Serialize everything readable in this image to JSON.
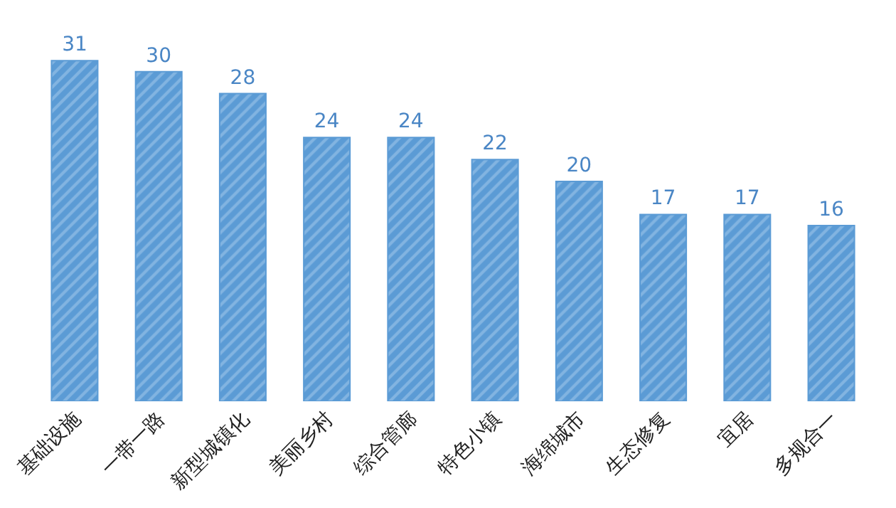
{
  "chart_data": {
    "type": "bar",
    "categories": [
      "基础设施",
      "一带一路",
      "新型城镇化",
      "美丽乡村",
      "综合管廊",
      "特色小镇",
      "海绵城市",
      "生态修复",
      "宜居",
      "多规合一"
    ],
    "values": [
      31,
      30,
      28,
      24,
      24,
      22,
      20,
      17,
      17,
      16
    ],
    "color": "#5b9bd5",
    "tick_labels": "x",
    "data_labels": true
  }
}
